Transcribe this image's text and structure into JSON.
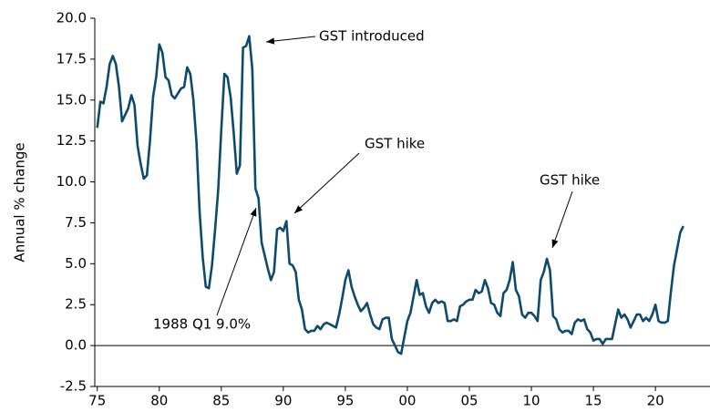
{
  "chart_data": {
    "type": "line",
    "y_label": "Annual % change",
    "annotations": [
      "GST introduced",
      "GST hike",
      "GST hike",
      "1988 Q1 9.0%"
    ],
    "x": [
      1975,
      1975.25,
      1975.5,
      1975.75,
      1976,
      1976.25,
      1976.5,
      1976.75,
      1977,
      1977.25,
      1977.5,
      1977.75,
      1978,
      1978.25,
      1978.5,
      1978.75,
      1979,
      1979.25,
      1979.5,
      1979.75,
      1980,
      1980.25,
      1980.5,
      1980.75,
      1981,
      1981.25,
      1981.5,
      1981.75,
      1982,
      1982.25,
      1982.5,
      1982.75,
      1983,
      1983.25,
      1983.5,
      1983.75,
      1984,
      1984.25,
      1984.5,
      1984.75,
      1985,
      1985.25,
      1985.5,
      1985.75,
      1986,
      1986.25,
      1986.5,
      1986.75,
      1987,
      1987.25,
      1987.5,
      1987.75,
      1988,
      1988.25,
      1988.5,
      1988.75,
      1989,
      1989.25,
      1989.5,
      1989.75,
      1990,
      1990.25,
      1990.5,
      1990.75,
      1991,
      1991.25,
      1991.5,
      1991.75,
      1992,
      1992.25,
      1992.5,
      1992.75,
      1993,
      1993.25,
      1993.5,
      1993.75,
      1994,
      1994.25,
      1994.5,
      1994.75,
      1995,
      1995.25,
      1995.5,
      1995.75,
      1996,
      1996.25,
      1996.5,
      1996.75,
      1997,
      1997.25,
      1997.5,
      1997.75,
      1998,
      1998.25,
      1998.5,
      1998.75,
      1999,
      1999.25,
      1999.5,
      1999.75,
      2000,
      2000.25,
      2000.5,
      2000.75,
      2001,
      2001.25,
      2001.5,
      2001.75,
      2002,
      2002.25,
      2002.5,
      2002.75,
      2003,
      2003.25,
      2003.5,
      2003.75,
      2004,
      2004.25,
      2004.5,
      2004.75,
      2005,
      2005.25,
      2005.5,
      2005.75,
      2006,
      2006.25,
      2006.5,
      2006.75,
      2007,
      2007.25,
      2007.5,
      2007.75,
      2008,
      2008.25,
      2008.5,
      2008.75,
      2009,
      2009.25,
      2009.5,
      2009.75,
      2010,
      2010.25,
      2010.5,
      2010.75,
      2011,
      2011.25,
      2011.5,
      2011.75,
      2012,
      2012.25,
      2012.5,
      2012.75,
      2013,
      2013.25,
      2013.5,
      2013.75,
      2014,
      2014.25,
      2014.5,
      2014.75,
      2015,
      2015.25,
      2015.5,
      2015.75,
      2016,
      2016.25,
      2016.5,
      2016.75,
      2017,
      2017.25,
      2017.5,
      2017.75,
      2018,
      2018.25,
      2018.5,
      2018.75,
      2019,
      2019.25,
      2019.5,
      2019.75,
      2020,
      2020.25,
      2020.5,
      2020.75,
      2021,
      2021.25,
      2021.5,
      2021.75,
      2022,
      2022.25
    ],
    "series": [
      {
        "color": "#0d4a6b",
        "values": [
          13.3,
          14.9,
          14.8,
          15.8,
          17.2,
          17.7,
          17.2,
          15.8,
          13.7,
          14.1,
          14.5,
          15.3,
          14.7,
          12.2,
          11.1,
          10.2,
          10.4,
          12.5,
          15.2,
          16.4,
          18.4,
          17.9,
          16.4,
          16.2,
          15.3,
          15.1,
          15.4,
          15.7,
          15.8,
          17.0,
          16.6,
          15.0,
          12.4,
          8.2,
          5.4,
          3.6,
          3.5,
          4.9,
          7.1,
          9.5,
          13.2,
          16.6,
          16.4,
          15.2,
          13.0,
          10.5,
          11.0,
          18.2,
          18.3,
          18.9,
          16.9,
          9.6,
          9.0,
          6.3,
          5.5,
          4.7,
          4.0,
          4.5,
          7.1,
          7.2,
          7.0,
          7.6,
          5.0,
          4.9,
          4.5,
          2.8,
          2.2,
          1.0,
          0.8,
          0.9,
          0.9,
          1.2,
          1.0,
          1.3,
          1.4,
          1.3,
          1.2,
          1.1,
          1.9,
          2.9,
          4.0,
          4.6,
          3.6,
          3.0,
          2.5,
          2.1,
          2.3,
          2.6,
          1.9,
          1.3,
          1.1,
          1.0,
          1.6,
          1.7,
          1.7,
          0.4,
          0.0,
          -0.4,
          -0.5,
          0.5,
          1.5,
          2.0,
          3.0,
          4.0,
          3.1,
          3.2,
          2.4,
          2.0,
          2.6,
          2.8,
          2.6,
          2.7,
          2.6,
          1.5,
          1.5,
          1.6,
          1.5,
          2.4,
          2.5,
          2.7,
          2.8,
          2.8,
          3.4,
          3.2,
          3.3,
          4.0,
          3.5,
          2.6,
          2.5,
          2.0,
          1.8,
          3.2,
          3.4,
          4.0,
          5.1,
          3.4,
          3.0,
          1.9,
          1.7,
          2.0,
          2.0,
          1.8,
          1.5,
          4.0,
          4.5,
          5.3,
          4.6,
          1.8,
          1.6,
          1.0,
          0.8,
          0.9,
          0.9,
          0.7,
          1.4,
          1.6,
          1.5,
          1.6,
          1.0,
          0.8,
          0.3,
          0.4,
          0.4,
          0.1,
          0.4,
          0.4,
          0.4,
          1.3,
          2.2,
          1.7,
          1.9,
          1.6,
          1.1,
          1.5,
          1.9,
          1.9,
          1.5,
          1.7,
          1.5,
          1.9,
          2.5,
          1.5,
          1.4,
          1.4,
          1.5,
          3.3,
          4.9,
          5.9,
          6.9,
          7.3
        ]
      }
    ],
    "xlim": [
      1974.8,
      2024.4
    ],
    "xticks": [
      {
        "value": 1975,
        "label": "75"
      },
      {
        "value": 1980,
        "label": "80"
      },
      {
        "value": 1985,
        "label": "85"
      },
      {
        "value": 1990,
        "label": "90"
      },
      {
        "value": 1995,
        "label": "95"
      },
      {
        "value": 2000,
        "label": "00"
      },
      {
        "value": 2005,
        "label": "05"
      },
      {
        "value": 2010,
        "label": "10"
      },
      {
        "value": 2015,
        "label": "15"
      },
      {
        "value": 2020,
        "label": "20"
      }
    ],
    "ylim": [
      -2.5,
      20
    ],
    "yticks": [
      {
        "value": -2.5,
        "label": "-2.5"
      },
      {
        "value": 0,
        "label": "0.0"
      },
      {
        "value": 2.5,
        "label": "2.5"
      },
      {
        "value": 5,
        "label": "5.0"
      },
      {
        "value": 7.5,
        "label": "7.5"
      },
      {
        "value": 10,
        "label": "10.0"
      },
      {
        "value": 12.5,
        "label": "12.5"
      },
      {
        "value": 15,
        "label": "15.0"
      },
      {
        "value": 17.5,
        "label": "17.5"
      },
      {
        "value": 20,
        "label": "20.0"
      }
    ]
  }
}
